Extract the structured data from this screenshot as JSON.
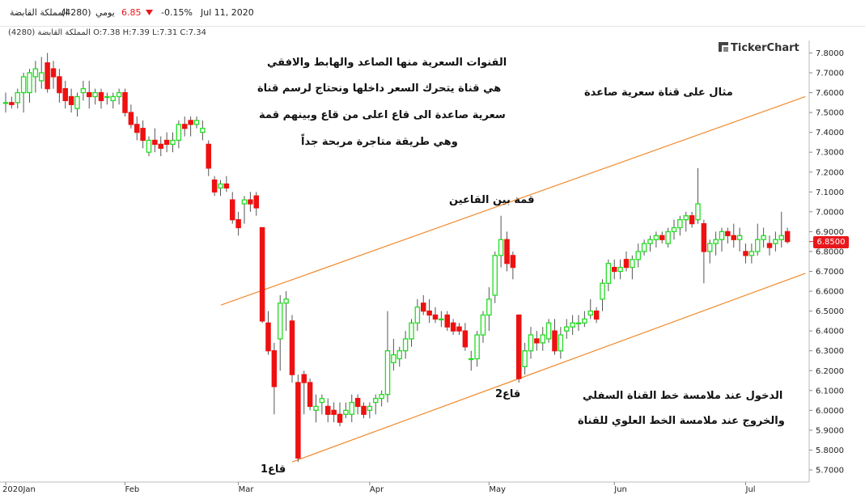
{
  "header": {
    "company": "المملكة القابضة",
    "symbol": "(4280)",
    "period": "يومي",
    "price": "6.85",
    "change": "-0.15%",
    "date": "Jul 11, 2020",
    "down_icon": "triangle-down-icon"
  },
  "info_bar": {
    "company": "المملكة القابضة",
    "symbol": "(4280)",
    "ohlc": "O:7.38 H:7.39 L:7.31 C:7.34"
  },
  "logo": {
    "text": "TickerChart",
    "icon": "tickerchart-logo-icon"
  },
  "price_tag": "6.8500",
  "annotations": {
    "title_lines": [
      "القنوات السعرية منها الصاعد والهابط والافقي",
      "هي قناة يتحرك السعر داخلها ونحتاج لرسم قناة",
      "سعرية صاعدة الى قاع اعلى من قاع وبينهم قمة",
      "وهي طريقة متاجرة مربحة جداً"
    ],
    "example": "مثال على قناة سعرية صاعدة",
    "peak": "قمة بين القاعين",
    "low2": "قاع2",
    "low1": "قاع1",
    "entry_exit": [
      "الدخول عند ملامسة خط القناة السفلي",
      "والخروج عند ملامسة الخط العلوي للقناة"
    ]
  },
  "colors": {
    "up": "#22dd22",
    "down": "#ee1111",
    "channel": "#f08a2c",
    "axis_text": "#222222",
    "price_tag": "#e8171c"
  },
  "chart_data": {
    "type": "candlestick",
    "x_labels": [
      "2020Jan",
      "Feb",
      "Mar",
      "Apr",
      "May",
      "Jun",
      "Jul"
    ],
    "x_label_index": [
      0,
      20,
      39,
      61,
      81,
      102,
      124
    ],
    "y_ticks": [
      "5.7000",
      "5.8000",
      "5.9000",
      "6.0000",
      "6.1000",
      "6.2000",
      "6.3000",
      "6.4000",
      "6.5000",
      "6.6000",
      "6.7000",
      "6.8000",
      "6.9000",
      "7.0000",
      "7.1000",
      "7.2000",
      "7.3000",
      "7.4000",
      "7.5000",
      "7.6000",
      "7.7000",
      "7.8000"
    ],
    "ylim": [
      5.65,
      7.87
    ],
    "channel": {
      "upper": [
        [
          0,
          6.53
        ],
        [
          134,
          7.58
        ]
      ],
      "lower": [
        [
          48,
          5.74
        ],
        [
          134,
          6.69
        ]
      ]
    },
    "candles": [
      [
        7.55,
        7.6,
        7.5,
        7.55
      ],
      [
        7.55,
        7.58,
        7.52,
        7.54
      ],
      [
        7.55,
        7.62,
        7.52,
        7.6
      ],
      [
        7.6,
        7.7,
        7.5,
        7.68
      ],
      [
        7.6,
        7.72,
        7.55,
        7.7
      ],
      [
        7.68,
        7.76,
        7.6,
        7.72
      ],
      [
        7.66,
        7.78,
        7.62,
        7.7
      ],
      [
        7.75,
        7.8,
        7.6,
        7.62
      ],
      [
        7.72,
        7.76,
        7.62,
        7.68
      ],
      [
        7.68,
        7.72,
        7.55,
        7.6
      ],
      [
        7.62,
        7.66,
        7.52,
        7.56
      ],
      [
        7.58,
        7.62,
        7.5,
        7.54
      ],
      [
        7.52,
        7.6,
        7.48,
        7.58
      ],
      [
        7.6,
        7.66,
        7.56,
        7.62
      ],
      [
        7.6,
        7.66,
        7.52,
        7.58
      ],
      [
        7.58,
        7.62,
        7.54,
        7.6
      ],
      [
        7.6,
        7.62,
        7.52,
        7.56
      ],
      [
        7.58,
        7.6,
        7.54,
        7.58
      ],
      [
        7.56,
        7.6,
        7.52,
        7.58
      ],
      [
        7.58,
        7.62,
        7.54,
        7.6
      ],
      [
        7.6,
        7.62,
        7.48,
        7.5
      ],
      [
        7.5,
        7.54,
        7.42,
        7.44
      ],
      [
        7.44,
        7.48,
        7.36,
        7.4
      ],
      [
        7.42,
        7.46,
        7.32,
        7.36
      ],
      [
        7.3,
        7.38,
        7.28,
        7.36
      ],
      [
        7.36,
        7.42,
        7.3,
        7.34
      ],
      [
        7.34,
        7.38,
        7.28,
        7.32
      ],
      [
        7.36,
        7.4,
        7.3,
        7.34
      ],
      [
        7.34,
        7.4,
        7.3,
        7.36
      ],
      [
        7.36,
        7.46,
        7.32,
        7.44
      ],
      [
        7.44,
        7.48,
        7.38,
        7.42
      ],
      [
        7.46,
        7.48,
        7.38,
        7.44
      ],
      [
        7.44,
        7.48,
        7.42,
        7.46
      ],
      [
        7.4,
        7.46,
        7.36,
        7.42
      ],
      [
        7.34,
        7.36,
        7.18,
        7.22
      ],
      [
        7.16,
        7.18,
        7.08,
        7.1
      ],
      [
        7.12,
        7.16,
        7.08,
        7.14
      ],
      [
        7.14,
        7.18,
        7.1,
        7.12
      ],
      [
        7.06,
        7.1,
        6.94,
        6.96
      ],
      [
        6.96,
        7.0,
        6.88,
        6.92
      ],
      [
        7.04,
        7.08,
        6.94,
        7.06
      ],
      [
        7.06,
        7.1,
        7.0,
        7.04
      ],
      [
        7.08,
        7.1,
        6.98,
        7.02
      ],
      [
        6.92,
        6.92,
        6.44,
        6.45
      ],
      [
        6.44,
        6.5,
        6.28,
        6.3
      ],
      [
        6.3,
        6.34,
        5.98,
        6.12
      ],
      [
        6.36,
        6.58,
        6.2,
        6.54
      ],
      [
        6.54,
        6.6,
        6.4,
        6.56
      ],
      [
        6.45,
        6.48,
        6.14,
        6.18
      ],
      [
        6.14,
        6.18,
        5.74,
        5.76
      ],
      [
        6.18,
        6.2,
        5.98,
        6.14
      ],
      [
        6.14,
        6.16,
        6.0,
        6.02
      ],
      [
        6.0,
        6.08,
        5.94,
        6.02
      ],
      [
        6.04,
        6.08,
        5.98,
        6.06
      ],
      [
        6.02,
        6.06,
        5.94,
        5.98
      ],
      [
        6.0,
        6.04,
        5.94,
        5.98
      ],
      [
        5.98,
        6.04,
        5.92,
        5.94
      ],
      [
        5.98,
        6.04,
        5.96,
        6.0
      ],
      [
        5.98,
        6.08,
        5.94,
        6.04
      ],
      [
        6.06,
        6.08,
        5.98,
        6.02
      ],
      [
        6.02,
        6.04,
        5.96,
        5.98
      ],
      [
        6.0,
        6.04,
        5.96,
        6.02
      ],
      [
        6.04,
        6.08,
        5.98,
        6.06
      ],
      [
        6.06,
        6.1,
        6.02,
        6.08
      ],
      [
        6.08,
        6.5,
        6.04,
        6.3
      ],
      [
        6.24,
        6.36,
        6.2,
        6.28
      ],
      [
        6.26,
        6.32,
        6.22,
        6.3
      ],
      [
        6.3,
        6.4,
        6.26,
        6.36
      ],
      [
        6.36,
        6.46,
        6.32,
        6.44
      ],
      [
        6.44,
        6.56,
        6.4,
        6.52
      ],
      [
        6.54,
        6.58,
        6.48,
        6.5
      ],
      [
        6.5,
        6.56,
        6.44,
        6.48
      ],
      [
        6.48,
        6.52,
        6.44,
        6.46
      ],
      [
        6.46,
        6.5,
        6.42,
        6.46
      ],
      [
        6.48,
        6.5,
        6.4,
        6.42
      ],
      [
        6.44,
        6.46,
        6.38,
        6.4
      ],
      [
        6.42,
        6.44,
        6.38,
        6.4
      ],
      [
        6.4,
        6.44,
        6.3,
        6.32
      ],
      [
        6.26,
        6.3,
        6.2,
        6.26
      ],
      [
        6.26,
        6.4,
        6.22,
        6.38
      ],
      [
        6.38,
        6.5,
        6.34,
        6.48
      ],
      [
        6.48,
        6.62,
        6.4,
        6.56
      ],
      [
        6.58,
        6.8,
        6.54,
        6.78
      ],
      [
        6.78,
        6.98,
        6.72,
        6.86
      ],
      [
        6.86,
        6.9,
        6.7,
        6.74
      ],
      [
        6.78,
        6.8,
        6.66,
        6.72
      ],
      [
        6.48,
        6.48,
        6.14,
        6.16
      ],
      [
        6.22,
        6.34,
        6.18,
        6.3
      ],
      [
        6.3,
        6.42,
        6.26,
        6.38
      ],
      [
        6.36,
        6.4,
        6.3,
        6.34
      ],
      [
        6.34,
        6.42,
        6.3,
        6.38
      ],
      [
        6.36,
        6.46,
        6.34,
        6.44
      ],
      [
        6.4,
        6.46,
        6.28,
        6.3
      ],
      [
        6.3,
        6.42,
        6.26,
        6.38
      ],
      [
        6.4,
        6.46,
        6.36,
        6.42
      ],
      [
        6.42,
        6.48,
        6.38,
        6.44
      ],
      [
        6.44,
        6.48,
        6.4,
        6.44
      ],
      [
        6.44,
        6.5,
        6.42,
        6.46
      ],
      [
        6.48,
        6.56,
        6.46,
        6.5
      ],
      [
        6.5,
        6.52,
        6.44,
        6.46
      ],
      [
        6.56,
        6.66,
        6.5,
        6.64
      ],
      [
        6.64,
        6.76,
        6.6,
        6.74
      ],
      [
        6.72,
        6.76,
        6.66,
        6.7
      ],
      [
        6.7,
        6.76,
        6.66,
        6.72
      ],
      [
        6.76,
        6.8,
        6.7,
        6.72
      ],
      [
        6.72,
        6.78,
        6.66,
        6.76
      ],
      [
        6.76,
        6.84,
        6.72,
        6.8
      ],
      [
        6.8,
        6.86,
        6.78,
        6.84
      ],
      [
        6.84,
        6.88,
        6.8,
        6.86
      ],
      [
        6.86,
        6.9,
        6.82,
        6.88
      ],
      [
        6.88,
        6.9,
        6.84,
        6.86
      ],
      [
        6.84,
        6.92,
        6.82,
        6.9
      ],
      [
        6.9,
        6.96,
        6.86,
        6.92
      ],
      [
        6.92,
        6.98,
        6.88,
        6.96
      ],
      [
        6.96,
        7.0,
        6.9,
        6.98
      ],
      [
        6.98,
        7.0,
        6.92,
        6.94
      ],
      [
        6.96,
        7.22,
        6.94,
        7.04
      ],
      [
        6.94,
        6.96,
        6.64,
        6.8
      ],
      [
        6.8,
        6.86,
        6.74,
        6.84
      ],
      [
        6.84,
        6.9,
        6.78,
        6.86
      ],
      [
        6.86,
        6.92,
        6.8,
        6.9
      ],
      [
        6.9,
        6.92,
        6.84,
        6.88
      ],
      [
        6.88,
        6.94,
        6.82,
        6.86
      ],
      [
        6.86,
        6.92,
        6.8,
        6.88
      ],
      [
        6.8,
        6.84,
        6.74,
        6.78
      ],
      [
        6.78,
        6.84,
        6.74,
        6.8
      ],
      [
        6.8,
        6.94,
        6.78,
        6.86
      ],
      [
        6.86,
        6.92,
        6.82,
        6.88
      ],
      [
        6.84,
        6.88,
        6.78,
        6.82
      ],
      [
        6.84,
        6.9,
        6.8,
        6.86
      ],
      [
        6.86,
        7.0,
        6.82,
        6.88
      ],
      [
        6.9,
        6.92,
        6.84,
        6.85
      ]
    ]
  }
}
